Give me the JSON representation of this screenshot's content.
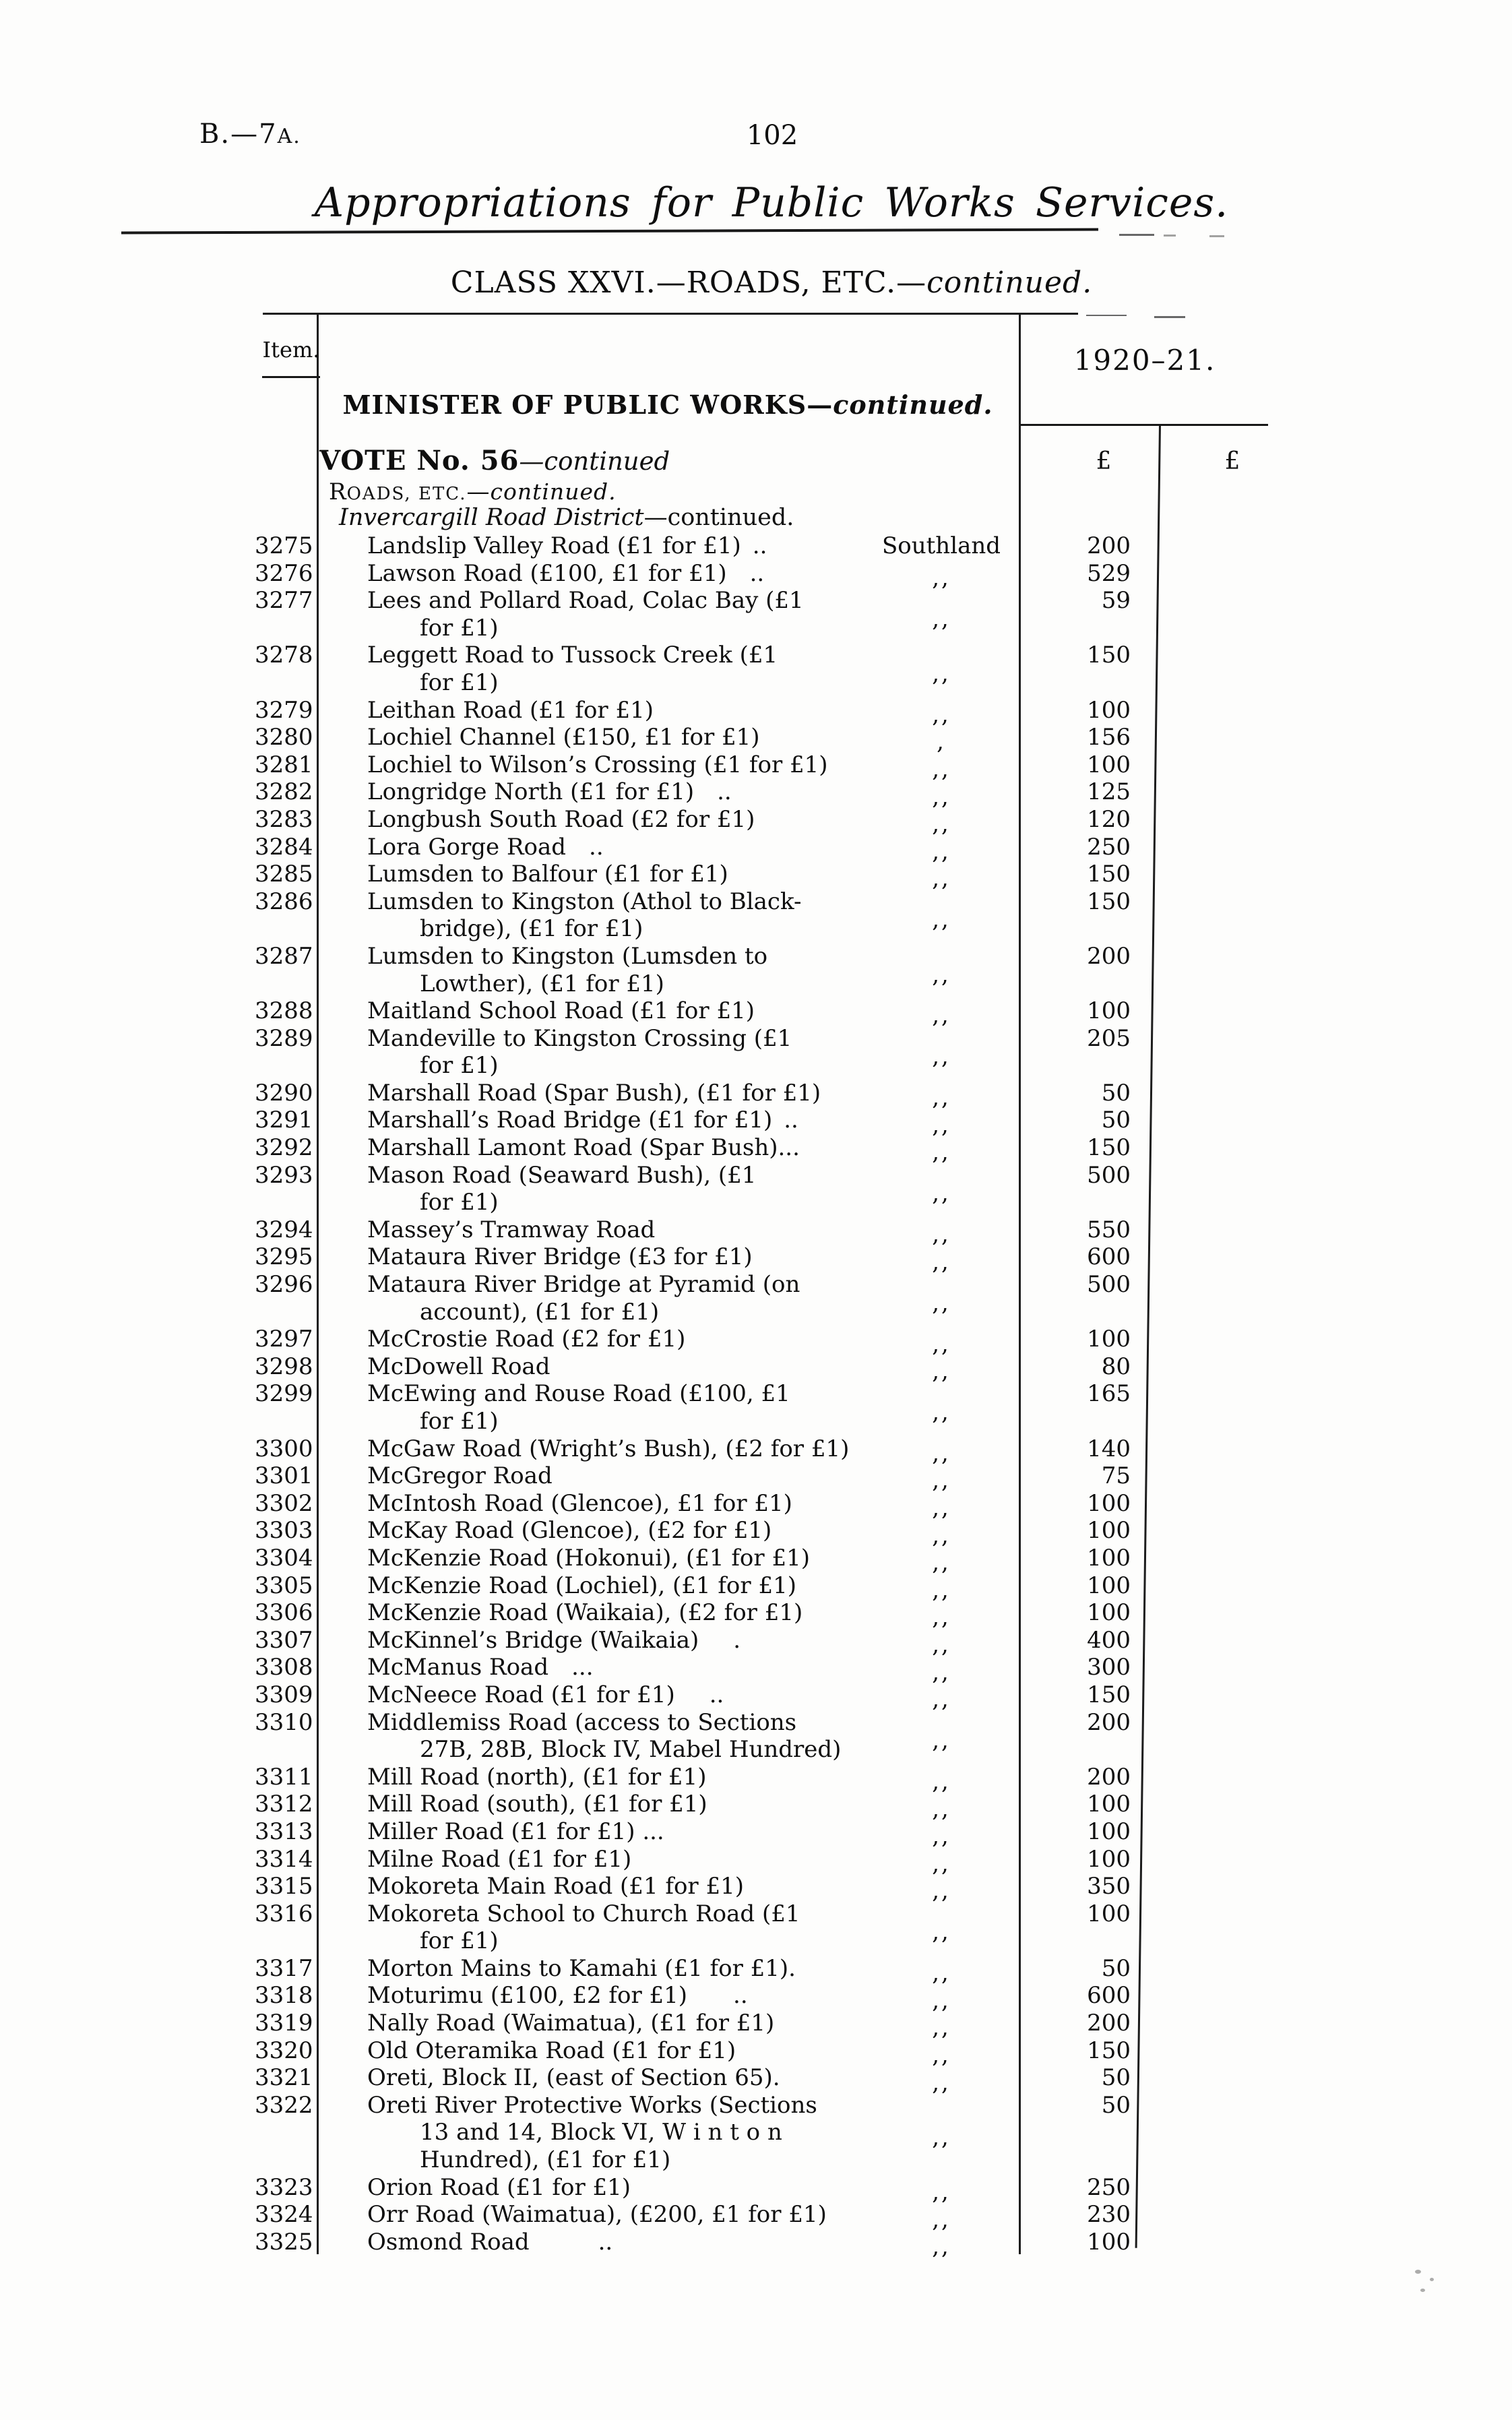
{
  "page": {
    "doc_code_main": "B.—7",
    "doc_code_suffix": "A.",
    "page_number": "102",
    "title": "Appropriations for Public Works Services.",
    "class_heading": "CLASS XXVI.—ROADS, ETC.—",
    "class_continued": "continued."
  },
  "table": {
    "header": {
      "item_label": "Item.",
      "year_label": "1920–21.",
      "pound_left": "£",
      "pound_right": "£",
      "minister": "MINISTER OF PUBLIC WORKS—",
      "minister_continued": "continued.",
      "vote": "VOTE No. 56",
      "vote_continued": "—continued",
      "roads_initial": "R",
      "roads_caps": "OADS, ETC.",
      "roads_dash": "—",
      "roads_continued": "continued.",
      "district": "Invercargill Road District",
      "district_continued": "—continued."
    },
    "rows": [
      {
        "item": "3275",
        "lines": [
          "Landslip Valley Road (£1 for £1) .."
        ],
        "location": "Southland",
        "amount": "200"
      },
      {
        "item": "3276",
        "lines": [
          "Lawson Road (£100, £1 for £1) .."
        ],
        "location": ",,",
        "amount": "529"
      },
      {
        "item": "3277",
        "lines": [
          "Lees and Pollard Road, Colac Bay (£1",
          "for £1)"
        ],
        "location": ",,",
        "amount": "59"
      },
      {
        "item": "3278",
        "lines": [
          "Leggett Road to Tussock Creek (£1",
          "for £1)"
        ],
        "location": ",,",
        "amount": "150"
      },
      {
        "item": "3279",
        "lines": [
          "Leithan Road (£1 for £1)"
        ],
        "location": ",,",
        "amount": "100"
      },
      {
        "item": "3280",
        "lines": [
          "Lochiel Channel (£150, £1 for £1)"
        ],
        "location": ",",
        "amount": "156"
      },
      {
        "item": "3281",
        "lines": [
          "Lochiel to Wilson’s Crossing (£1 for £1)"
        ],
        "location": ",,",
        "amount": "100"
      },
      {
        "item": "3282",
        "lines": [
          "Longridge North (£1 for £1) .."
        ],
        "location": ",,",
        "amount": "125"
      },
      {
        "item": "3283",
        "lines": [
          "Longbush South Road (£2 for £1)"
        ],
        "location": ",,",
        "amount": "120"
      },
      {
        "item": "3284",
        "lines": [
          "Lora Gorge Road .."
        ],
        "location": ",,",
        "amount": "250"
      },
      {
        "item": "3285",
        "lines": [
          "Lumsden to Balfour (£1 for £1)"
        ],
        "location": ",,",
        "amount": "150"
      },
      {
        "item": "3286",
        "lines": [
          "Lumsden to Kingston (Athol to Black-",
          "bridge), (£1 for £1)"
        ],
        "location": ",,",
        "amount": "150"
      },
      {
        "item": "3287",
        "lines": [
          "Lumsden to Kingston (Lumsden to",
          "Lowther), (£1 for £1)"
        ],
        "location": ",,",
        "amount": "200"
      },
      {
        "item": "3288",
        "lines": [
          "Maitland School Road (£1 for £1)"
        ],
        "location": ",,",
        "amount": "100"
      },
      {
        "item": "3289",
        "lines": [
          "Mandeville to Kingston Crossing (£1",
          "for £1)"
        ],
        "location": ",,",
        "amount": "205"
      },
      {
        "item": "3290",
        "lines": [
          "Marshall Road (Spar Bush), (£1 for £1)"
        ],
        "location": ",,",
        "amount": "50"
      },
      {
        "item": "3291",
        "lines": [
          "Marshall’s Road Bridge (£1 for £1) .."
        ],
        "location": ",,",
        "amount": "50"
      },
      {
        "item": "3292",
        "lines": [
          "Marshall Lamont Road (Spar Bush)..."
        ],
        "location": ",,",
        "amount": "150"
      },
      {
        "item": "3293",
        "lines": [
          "Mason  Road  (Seaward  Bush),  (£1",
          "for £1)"
        ],
        "location": ",,",
        "amount": "500"
      },
      {
        "item": "3294",
        "lines": [
          "Massey’s Tramway Road"
        ],
        "location": ",,",
        "amount": "550"
      },
      {
        "item": "3295",
        "lines": [
          "Mataura River Bridge (£3 for £1)"
        ],
        "location": ",,",
        "amount": "600"
      },
      {
        "item": "3296",
        "lines": [
          "Mataura River Bridge at Pyramid (on",
          "account), (£1 for £1)"
        ],
        "location": ",,",
        "amount": "500"
      },
      {
        "item": "3297",
        "lines": [
          "McCrostie Road (£2 for £1)"
        ],
        "location": ",,",
        "amount": "100"
      },
      {
        "item": "3298",
        "lines": [
          "McDowell Road"
        ],
        "location": ",,",
        "amount": "80"
      },
      {
        "item": "3299",
        "lines": [
          "McEwing and Rouse Road (£100, £1",
          "for £1)"
        ],
        "location": ",,",
        "amount": "165"
      },
      {
        "item": "3300",
        "lines": [
          "McGaw Road (Wright’s Bush), (£2 for £1)"
        ],
        "location": ",,",
        "amount": "140"
      },
      {
        "item": "3301",
        "lines": [
          "McGregor Road"
        ],
        "location": ",,",
        "amount": "75"
      },
      {
        "item": "3302",
        "lines": [
          "McIntosh Road (Glencoe), £1 for £1)"
        ],
        "location": ",,",
        "amount": "100"
      },
      {
        "item": "3303",
        "lines": [
          "McKay Road (Glencoe), (£2 for £1)"
        ],
        "location": ",,",
        "amount": "100"
      },
      {
        "item": "3304",
        "lines": [
          "McKenzie Road (Hokonui), (£1 for £1)"
        ],
        "location": ",,",
        "amount": "100"
      },
      {
        "item": "3305",
        "lines": [
          "McKenzie Road (Lochiel), (£1 for £1)"
        ],
        "location": ",,",
        "amount": "100"
      },
      {
        "item": "3306",
        "lines": [
          "McKenzie Road (Waikaia), (£2 for £1)"
        ],
        "location": ",,",
        "amount": "100"
      },
      {
        "item": "3307",
        "lines": [
          "McKinnel’s Bridge (Waikaia)  ."
        ],
        "location": ",,",
        "amount": "400"
      },
      {
        "item": "3308",
        "lines": [
          "McManus Road ..."
        ],
        "location": ",,",
        "amount": "300"
      },
      {
        "item": "3309",
        "lines": [
          "McNeece Road (£1 for £1)  .."
        ],
        "location": ",,",
        "amount": "150"
      },
      {
        "item": "3310",
        "lines": [
          "Middlemiss  Road  (access  to  Sections",
          "27B, 28B, Block IV, Mabel Hundred)"
        ],
        "location": ",,",
        "amount": "200"
      },
      {
        "item": "3311",
        "lines": [
          "Mill Road (north), (£1 for £1)"
        ],
        "location": ",,",
        "amount": "200"
      },
      {
        "item": "3312",
        "lines": [
          "Mill Road (south), (£1 for £1)"
        ],
        "location": ",,",
        "amount": "100"
      },
      {
        "item": "3313",
        "lines": [
          "Miller Road (£1 for £1) ..."
        ],
        "location": ",,",
        "amount": "100"
      },
      {
        "item": "3314",
        "lines": [
          "Milne Road (£1 for £1)"
        ],
        "location": ",,",
        "amount": "100"
      },
      {
        "item": "3315",
        "lines": [
          "Mokoreta Main Road (£1 for £1)"
        ],
        "location": ",,",
        "amount": "350"
      },
      {
        "item": "3316",
        "lines": [
          "Mokoreta School to Church Road (£1",
          "for £1)"
        ],
        "location": ",,",
        "amount": "100"
      },
      {
        "item": "3317",
        "lines": [
          "Morton Mains to Kamahi (£1 for £1)."
        ],
        "location": ",,",
        "amount": "50"
      },
      {
        "item": "3318",
        "lines": [
          "Moturimu (£100, £2 for £1)  .."
        ],
        "location": ",,",
        "amount": "600"
      },
      {
        "item": "3319",
        "lines": [
          "Nally Road (Waimatua), (£1 for £1)"
        ],
        "location": ",,",
        "amount": "200"
      },
      {
        "item": "3320",
        "lines": [
          "Old Oteramika Road (£1 for £1)"
        ],
        "location": ",,",
        "amount": "150"
      },
      {
        "item": "3321",
        "lines": [
          "Oreti, Block II, (east of Section 65)."
        ],
        "location": ",,",
        "amount": "50"
      },
      {
        "item": "3322",
        "lines": [
          "Oreti River Protective Works (Sections",
          "13  and  14,  Block  VI,  W i n t o n",
          "Hundred), (£1 for £1)"
        ],
        "location": ",,",
        "amount": "50"
      },
      {
        "item": "3323",
        "lines": [
          "Orion Road (£1 for £1)"
        ],
        "location": ",,",
        "amount": "250"
      },
      {
        "item": "3324",
        "lines": [
          "Orr Road (Waimatua), (£200, £1 for £1)"
        ],
        "location": ",,",
        "amount": "230"
      },
      {
        "item": "3325",
        "lines": [
          "Osmond Road   .."
        ],
        "location": ",,",
        "amount": "100"
      }
    ]
  }
}
